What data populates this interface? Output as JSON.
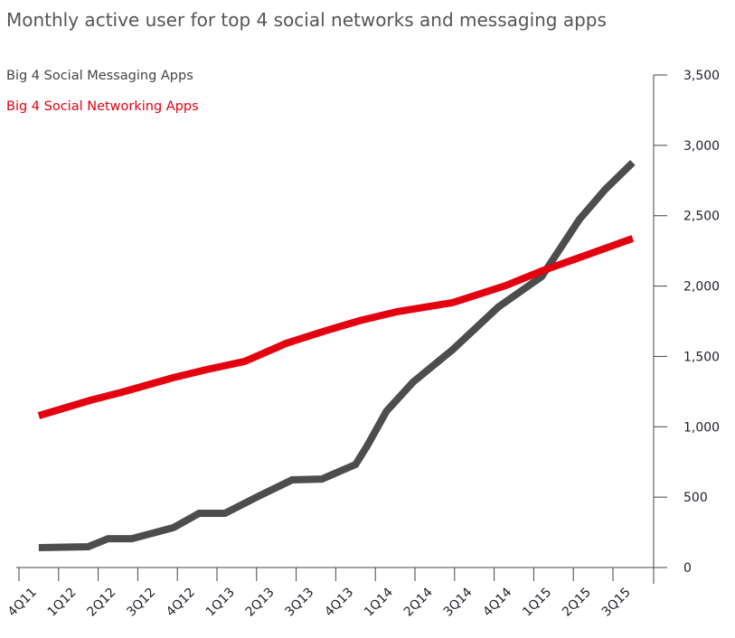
{
  "chart_data": {
    "type": "line",
    "title": "Monthly active user for top 4 social networks and messaging apps",
    "xlabel": "",
    "ylabel": "",
    "ylim": [
      0,
      3500
    ],
    "yticks": [
      0,
      500,
      1000,
      1500,
      2000,
      2500,
      3000,
      3500
    ],
    "ytick_labels": [
      "0",
      "500",
      "1,000",
      "1,500",
      "2,000",
      "2,500",
      "3,000",
      "3,500"
    ],
    "y_axis_side": "right",
    "grid": false,
    "legend_position": "top-left",
    "categories": [
      "4Q11",
      "1Q12",
      "2Q12",
      "3Q12",
      "4Q12",
      "1Q13",
      "2Q13",
      "3Q13",
      "4Q13",
      "1Q14",
      "2Q14",
      "3Q14",
      "4Q14",
      "1Q15",
      "2Q15",
      "3Q15"
    ],
    "series": [
      {
        "name": "Big 4 Social Messaging Apps",
        "color": "#4d4d4f",
        "x": [
          0.25,
          0.5,
          0.75,
          1.0,
          1.25,
          1.5,
          1.75,
          2.0,
          2.25,
          2.5,
          2.75,
          3.0,
          3.25,
          3.5,
          3.75,
          4.0,
          4.25,
          4.5,
          4.75,
          5.0,
          5.25,
          5.5,
          5.75,
          6.0,
          6.25,
          6.5,
          6.75,
          7.0,
          7.25,
          7.5,
          7.75,
          8.0,
          8.25,
          8.5,
          8.75,
          9.0,
          9.25,
          9.5,
          9.75,
          10.0,
          10.25,
          10.5,
          10.75,
          11.0,
          11.25,
          11.5,
          11.75,
          12.0,
          12.25,
          12.5,
          12.75,
          13.0,
          13.25,
          13.5,
          13.75,
          14.0,
          14.25,
          14.5,
          14.75,
          15.0,
          15.25
        ],
        "points": [
          [
            0.5,
            141
          ],
          [
            1.75,
            148
          ],
          [
            2.25,
            205
          ],
          [
            2.85,
            205
          ],
          [
            3.9,
            283
          ],
          [
            4.55,
            385
          ],
          [
            5.2,
            385
          ],
          [
            6.05,
            507
          ],
          [
            6.9,
            623
          ],
          [
            7.65,
            629
          ],
          [
            8.5,
            732
          ],
          [
            8.8,
            867
          ],
          [
            9.28,
            1111
          ],
          [
            9.95,
            1317
          ],
          [
            10.95,
            1548
          ],
          [
            12.1,
            1850
          ],
          [
            13.2,
            2068
          ],
          [
            14.15,
            2473
          ],
          [
            14.8,
            2685
          ],
          [
            15.5,
            2878
          ]
        ]
      },
      {
        "name": "Big 4 Social Networking Apps",
        "color": "#e3000f",
        "points": [
          [
            0.5,
            1079
          ],
          [
            1.8,
            1188
          ],
          [
            2.6,
            1246
          ],
          [
            3.9,
            1349
          ],
          [
            4.75,
            1407
          ],
          [
            5.7,
            1465
          ],
          [
            6.75,
            1593
          ],
          [
            7.75,
            1683
          ],
          [
            8.6,
            1754
          ],
          [
            9.55,
            1818
          ],
          [
            10.95,
            1882
          ],
          [
            12.3,
            2004
          ],
          [
            13.2,
            2107
          ],
          [
            15.5,
            2338
          ]
        ]
      }
    ]
  }
}
